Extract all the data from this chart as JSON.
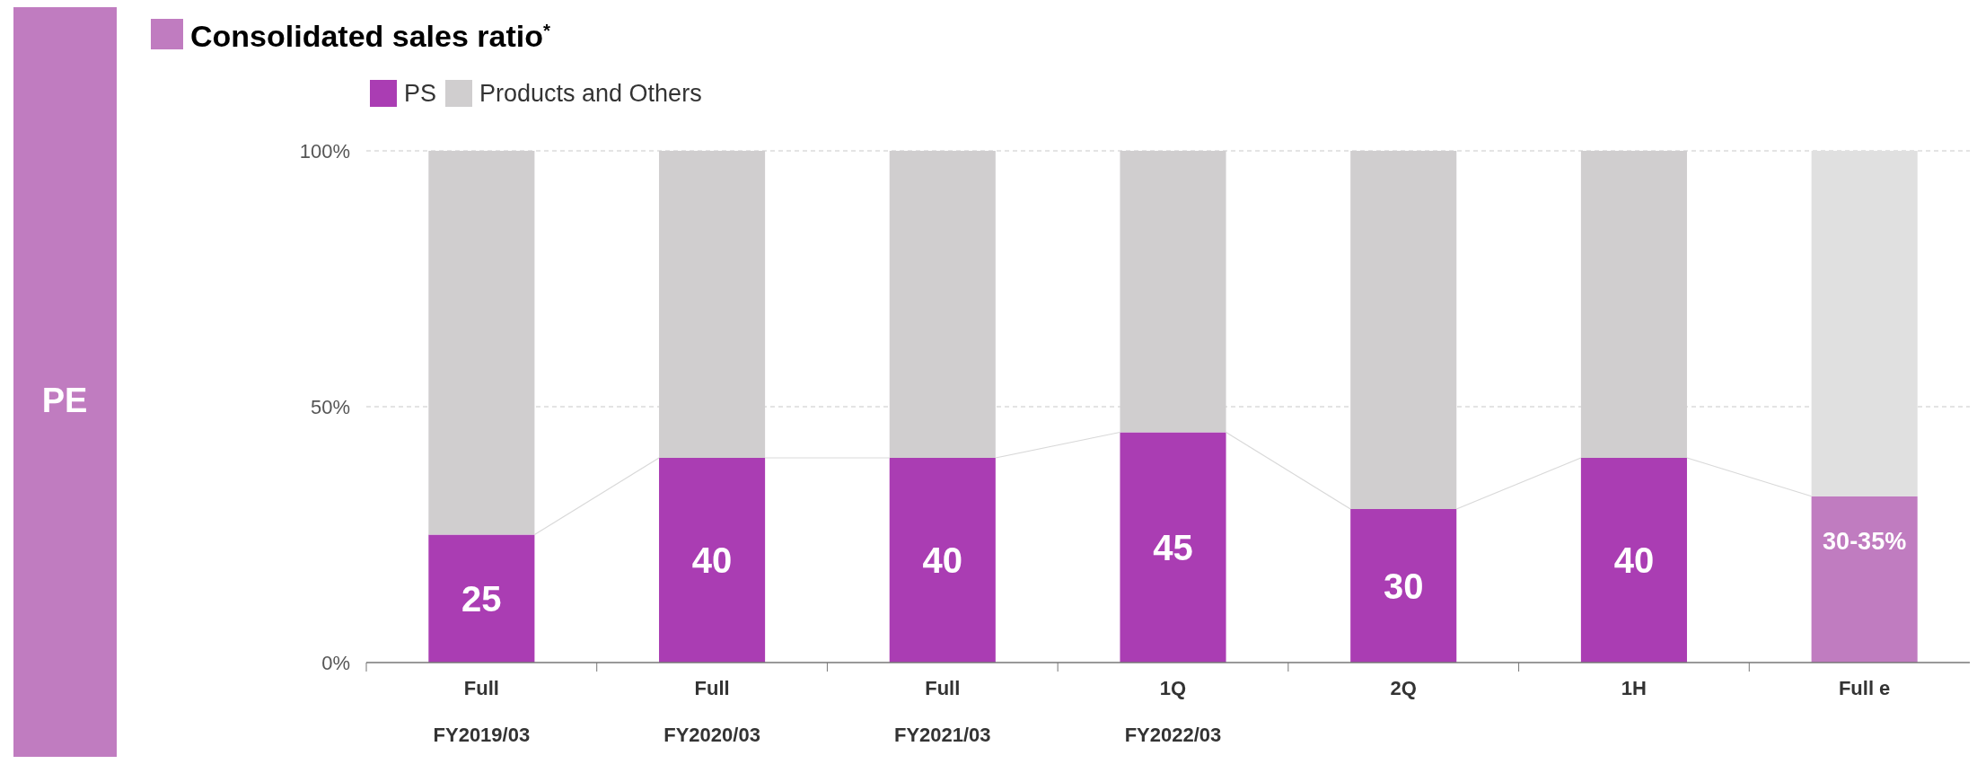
{
  "chart_data": {
    "type": "bar",
    "stacked": true,
    "title": "Consolidated sales ratio$^{*}$",
    "categories": [
      "Full\nFY2019/03",
      "Full\nFY2020/03",
      "Full\nFY2021/03",
      "1Q\nFY2022/03",
      "2Q",
      "1H",
      "Full e"
    ],
    "series": [
      {
        "name": "PS",
        "color": "#aa3db3",
        "colors": [
          "#aa3db3",
          "#aa3db3",
          "#aa3db3",
          "#aa3db3",
          "#aa3db3",
          "#aa3db3",
          "#c07cc0"
        ],
        "values": [
          25,
          40,
          40,
          45,
          30,
          40,
          32.5
        ],
        "value_labels": [
          "25",
          "40",
          "40",
          "45",
          "30",
          "40",
          null
        ]
      },
      {
        "name": "Products and Others",
        "color": "#d0cecf",
        "colors": [
          "#d0cecf",
          "#d0cecf",
          "#d0cecf",
          "#d0cecf",
          "#d0cecf",
          "#d0cecf",
          "#e0e0e0"
        ],
        "values": [
          75,
          60,
          60,
          55,
          70,
          60,
          67.5
        ]
      }
    ],
    "ylim": [
      0,
      100
    ],
    "yticks": [
      {
        "value": 0,
        "label": "0%"
      },
      {
        "value": 50,
        "label": "50%"
      },
      {
        "value": 100,
        "label": "100%"
      }
    ],
    "grid": "y",
    "legend": "top left",
    "annotations": [
      "PE",
      {
        "text": "30-35%",
        "x": "Full e",
        "y": 32.5
      }
    ]
  }
}
